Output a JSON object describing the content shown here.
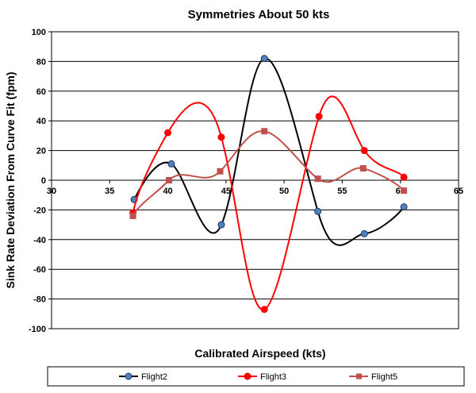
{
  "chart_data": {
    "type": "line",
    "title": "Symmetries About 50 kts",
    "xlabel": "Calibrated Airspeed (kts)",
    "ylabel": "Sink Rate Deviation From Curve Fit (fpm)",
    "xlim": [
      30,
      65
    ],
    "ylim": [
      -100,
      100
    ],
    "xticks": [
      30,
      35,
      40,
      45,
      50,
      55,
      60,
      65
    ],
    "yticks": [
      -100,
      -80,
      -60,
      -40,
      -20,
      0,
      20,
      40,
      60,
      80,
      100
    ],
    "grid": "horizontal",
    "legend_position": "bottom",
    "line_style": "smoothed",
    "series": [
      {
        "name": "Flight2",
        "color": "#000000",
        "marker": "circle",
        "marker_color": "#4F81BD",
        "x": [
          37.1,
          40.3,
          44.6,
          48.3,
          52.9,
          56.9,
          60.3
        ],
        "y": [
          -13,
          11,
          -30,
          82,
          -21,
          -36,
          -18
        ]
      },
      {
        "name": "Flight3",
        "color": "#FF0000",
        "marker": "circle",
        "marker_color": "#FF0000",
        "x": [
          37.0,
          40.0,
          44.6,
          48.3,
          53.0,
          56.9,
          60.3
        ],
        "y": [
          -22,
          32,
          29,
          -87,
          43,
          20,
          2
        ]
      },
      {
        "name": "Flight5",
        "color": "#C0504D",
        "marker": "square",
        "marker_color": "#C0504D",
        "x": [
          37.0,
          40.1,
          44.5,
          48.3,
          52.9,
          56.8,
          60.3
        ],
        "y": [
          -24,
          0,
          6,
          33,
          1,
          8,
          -7
        ]
      }
    ]
  }
}
